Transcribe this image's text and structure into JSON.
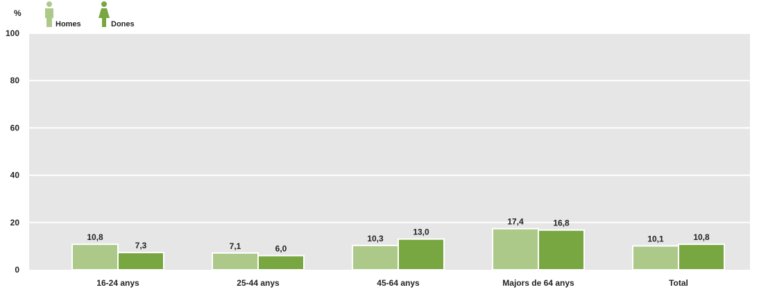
{
  "chart_data": {
    "type": "bar",
    "unit_label": "%",
    "categories": [
      "16-24 anys",
      "25-44 anys",
      "45-64 anys",
      "Majors de 64 anys",
      "Total"
    ],
    "series": [
      {
        "name": "Homes",
        "color": "#adc98a",
        "values": [
          10.8,
          7.1,
          10.3,
          17.4,
          10.1
        ],
        "labels": [
          "10,8",
          "7,1",
          "10,3",
          "17,4",
          "10,1"
        ]
      },
      {
        "name": "Dones",
        "color": "#78a641",
        "values": [
          7.3,
          6.0,
          13.0,
          16.8,
          10.8
        ],
        "labels": [
          "7,3",
          "6,0",
          "13,0",
          "16,8",
          "10,8"
        ]
      }
    ],
    "yticks": [
      "0",
      "20",
      "40",
      "60",
      "80",
      "100"
    ],
    "ylim": [
      0,
      100
    ],
    "grid": true,
    "legend_position": "top-left",
    "plot_background": "#e6e6e6",
    "legend_icon": "person-icon"
  }
}
